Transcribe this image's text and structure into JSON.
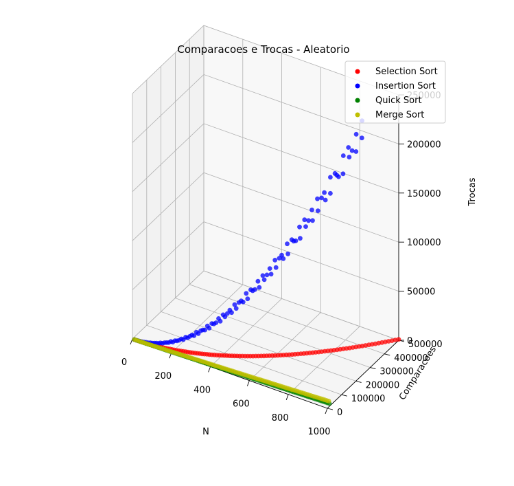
{
  "chart_data": {
    "type": "scatter",
    "projection": "3d",
    "title": "Comparacoes e Trocas - Aleatorio",
    "xlabel": "N",
    "ylabel": "Comparacoes",
    "zlabel": "Trocas",
    "xticks": [
      "0",
      "200",
      "400",
      "600",
      "800",
      "1000"
    ],
    "yticks": [
      "0",
      "100000",
      "200000",
      "300000",
      "400000",
      "500000"
    ],
    "zticks": [
      "0",
      "50000",
      "100000",
      "150000",
      "200000",
      "250000"
    ],
    "xlim": [
      0,
      1000
    ],
    "ylim": [
      0,
      500000
    ],
    "zlim": [
      0,
      250000
    ],
    "grid": true,
    "legend_position": "top-right",
    "series": [
      {
        "name": "Selection Sort",
        "color": "#ff0000",
        "model": "n^2/2 comparisons, ~n trocas",
        "x_range": [
          10,
          1000
        ],
        "x_step": 10
      },
      {
        "name": "Insertion Sort",
        "color": "#0000ff",
        "model": "~n^2/4 comparisons and trocas",
        "x_range": [
          10,
          1000
        ],
        "x_step": 10
      },
      {
        "name": "Quick Sort",
        "color": "#008000",
        "model": "~1.4 n log2 n comparisons",
        "x_range": [
          10,
          1000
        ],
        "x_step": 10
      },
      {
        "name": "Merge Sort",
        "color": "#bfbf00",
        "model": "~n log2 n comparisons",
        "x_range": [
          10,
          1000
        ],
        "x_step": 10
      }
    ]
  }
}
